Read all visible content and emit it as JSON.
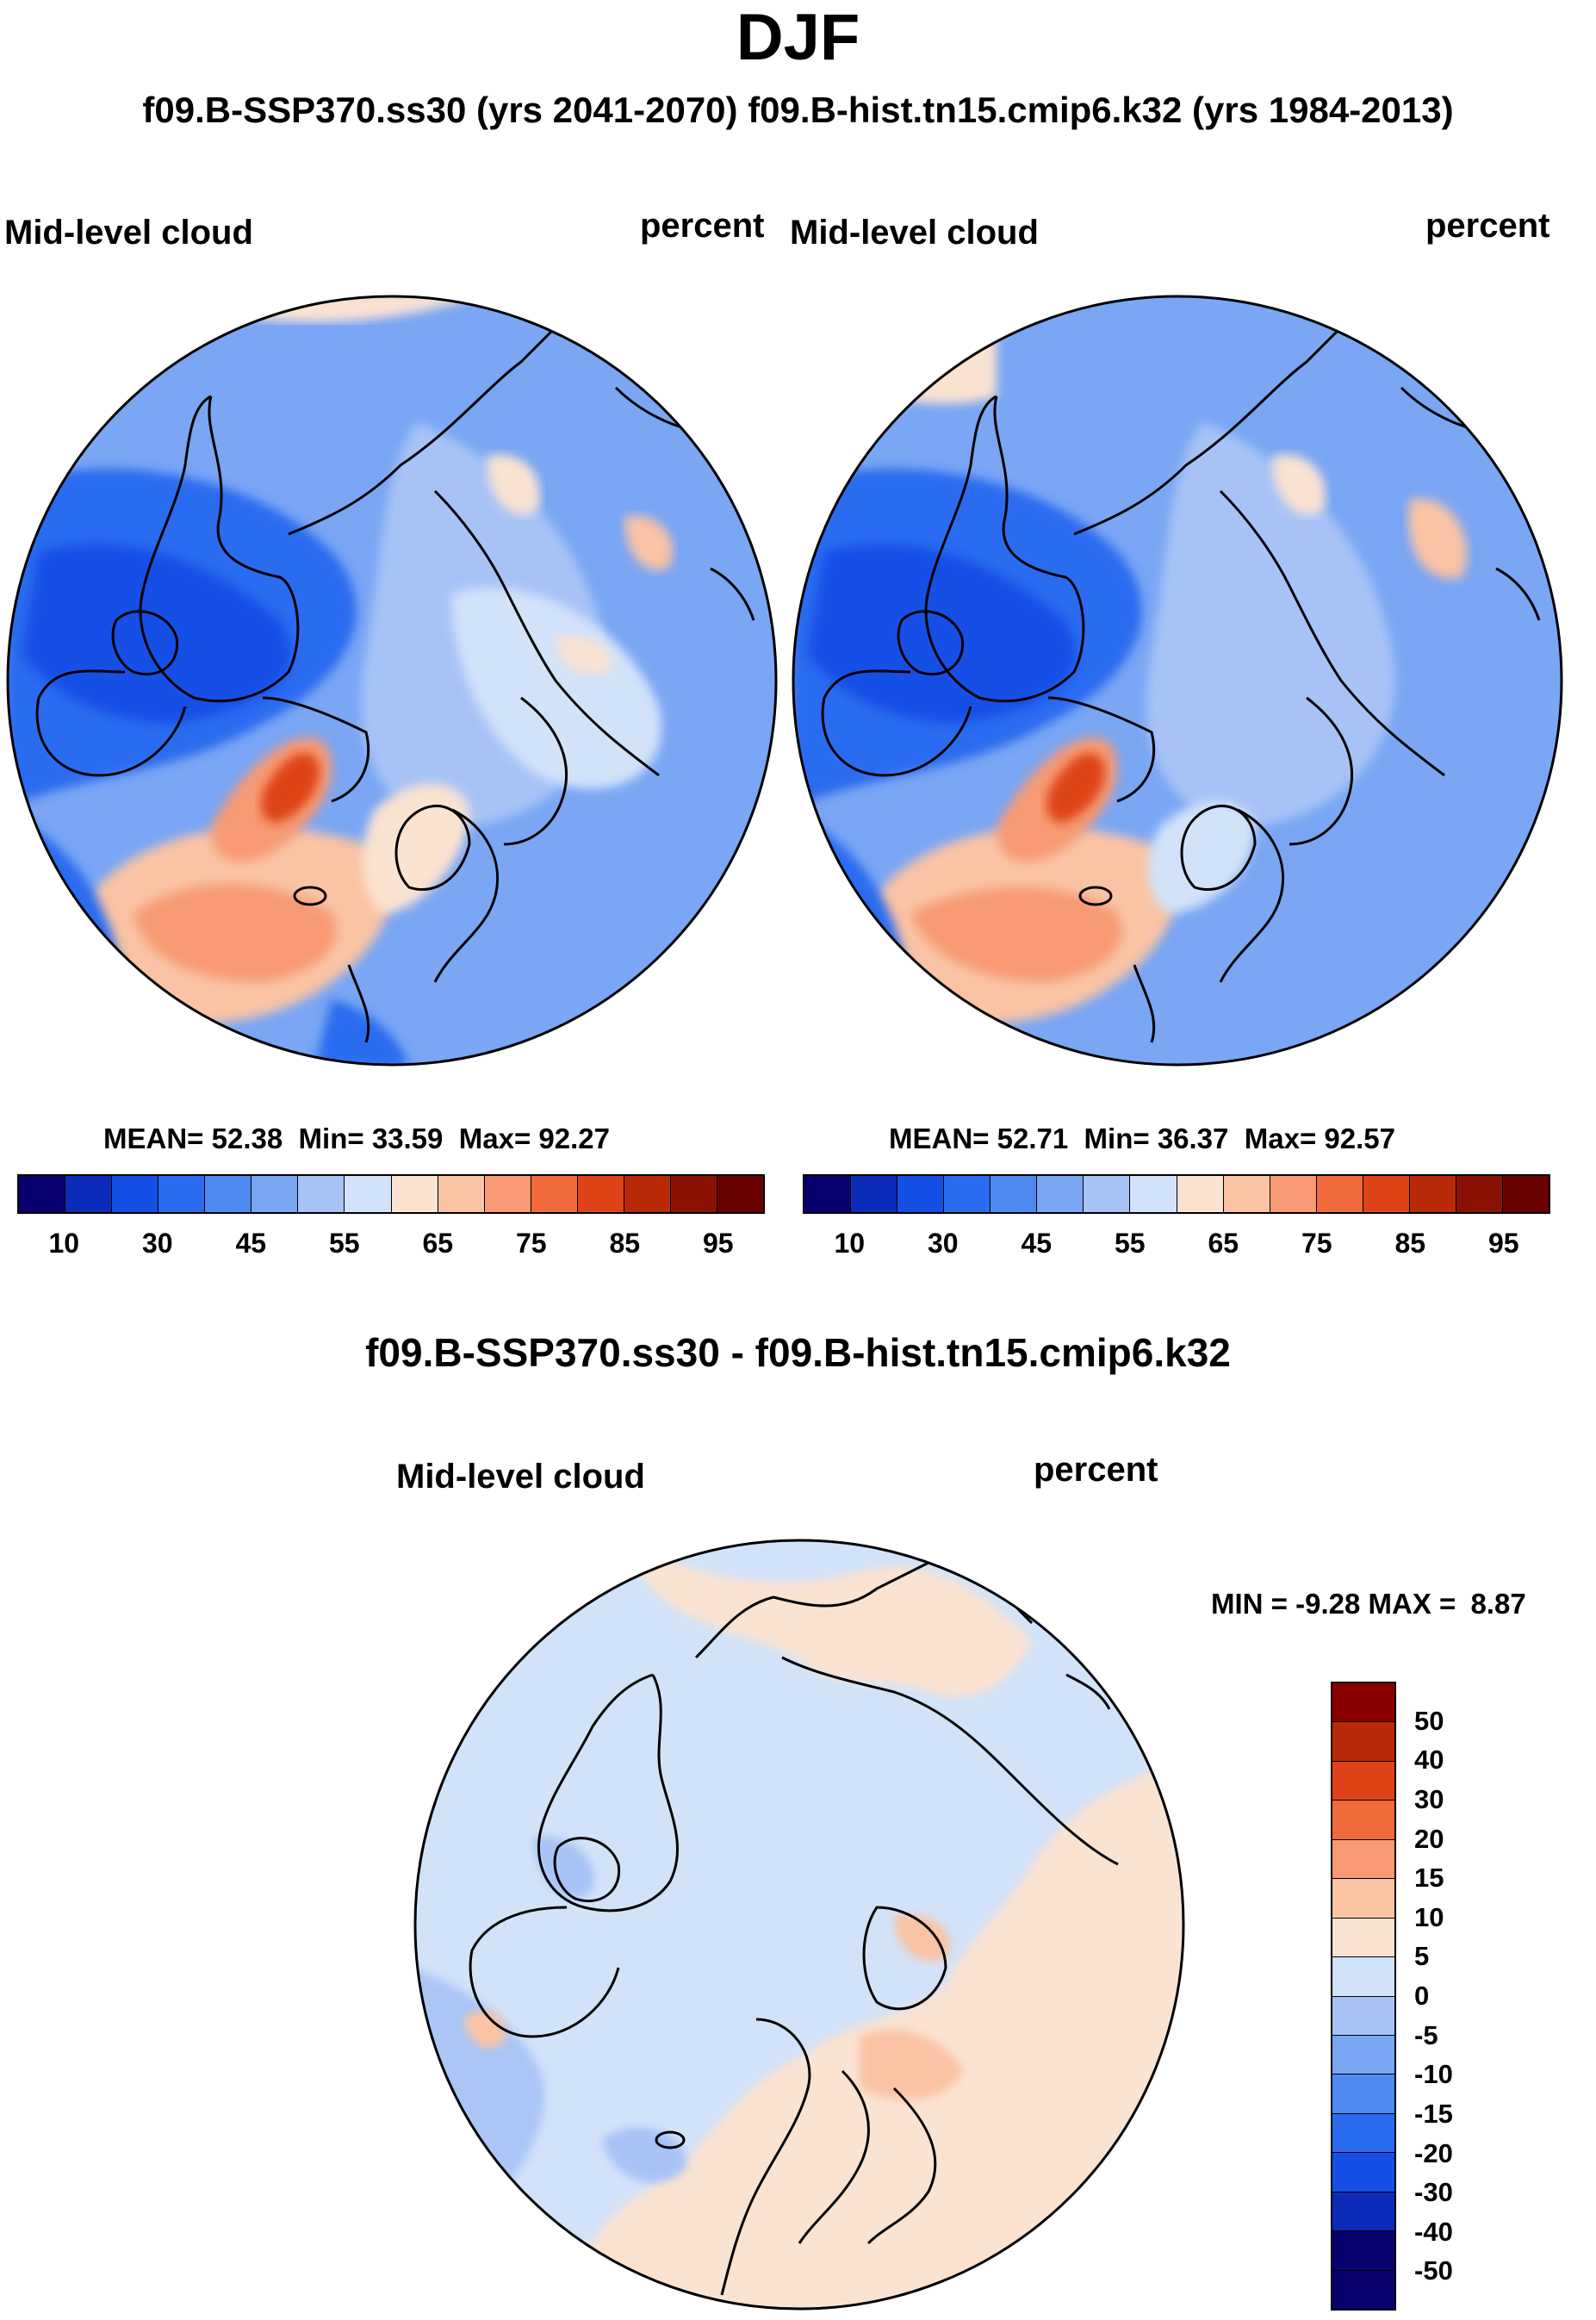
{
  "title": "DJF",
  "subtitle": "f09.B-SSP370.ss30 (yrs 2041-2070)  f09.B-hist.tn15.cmip6.k32 (yrs 1984-2013)",
  "diff_title": "f09.B-SSP370.ss30 - f09.B-hist.tn15.cmip6.k32",
  "chart_data": [
    {
      "type": "heatmap",
      "projection": "north-polar-stereographic",
      "variable": "Mid-level cloud",
      "units": "percent",
      "case": "f09.B-SSP370.ss30 (yrs 2041-2070)",
      "stats": {
        "mean_label": "MEAN=",
        "mean": "52.38",
        "min_label": "Min=",
        "min": "33.59",
        "max_label": "Max=",
        "max": "92.27"
      },
      "colorbar": {
        "levels": [
          10,
          20,
          30,
          40,
          45,
          50,
          55,
          60,
          65,
          70,
          75,
          80,
          85,
          90,
          95
        ],
        "tick_labels": [
          "10",
          "30",
          "45",
          "55",
          "65",
          "75",
          "85",
          "95"
        ],
        "colors": [
          "#08006e",
          "#0b2bb8",
          "#1450e6",
          "#2a6cf0",
          "#4f8af2",
          "#7aa6f4",
          "#a7c3f6",
          "#d2e3f9",
          "#fbe3d2",
          "#f9c3a4",
          "#f79a73",
          "#f06a3c",
          "#de4417",
          "#b82a08",
          "#8a1204",
          "#6a0202"
        ]
      }
    },
    {
      "type": "heatmap",
      "projection": "north-polar-stereographic",
      "variable": "Mid-level cloud",
      "units": "percent",
      "case": "f09.B-hist.tn15.cmip6.k32 (yrs 1984-2013)",
      "stats": {
        "mean_label": "MEAN=",
        "mean": "52.71",
        "min_label": "Min=",
        "min": "36.37",
        "max_label": "Max=",
        "max": "92.57"
      },
      "colorbar": {
        "levels": [
          10,
          20,
          30,
          40,
          45,
          50,
          55,
          60,
          65,
          70,
          75,
          80,
          85,
          90,
          95
        ],
        "tick_labels": [
          "10",
          "30",
          "45",
          "55",
          "65",
          "75",
          "85",
          "95"
        ],
        "colors": [
          "#08006e",
          "#0b2bb8",
          "#1450e6",
          "#2a6cf0",
          "#4f8af2",
          "#7aa6f4",
          "#a7c3f6",
          "#d2e3f9",
          "#fbe3d2",
          "#f9c3a4",
          "#f79a73",
          "#f06a3c",
          "#de4417",
          "#b82a08",
          "#8a1204",
          "#6a0202"
        ]
      }
    },
    {
      "type": "heatmap",
      "projection": "north-polar-stereographic",
      "variable": "Mid-level cloud",
      "units": "percent",
      "case": "f09.B-SSP370.ss30 - f09.B-hist.tn15.cmip6.k32",
      "stats": {
        "min_label": "MIN =",
        "min": "-9.28",
        "max_label": "MAX =",
        "max": "8.87"
      },
      "colorbar": {
        "levels": [
          -50,
          -40,
          -30,
          -20,
          -15,
          -10,
          -5,
          0,
          5,
          10,
          15,
          20,
          30,
          40,
          50
        ],
        "tick_labels": [
          "50",
          "40",
          "30",
          "20",
          "15",
          "10",
          "5",
          "0",
          "-5",
          "-10",
          "-15",
          "-20",
          "-30",
          "-40",
          "-50"
        ],
        "colors_top_to_bottom": [
          "#8a0000",
          "#b82a08",
          "#de4417",
          "#f06a3c",
          "#f79a73",
          "#f9c3a4",
          "#fbe3d2",
          "#d2e3f9",
          "#a7c3f6",
          "#7aa6f4",
          "#4f8af2",
          "#2a6cf0",
          "#1450e6",
          "#0b2bb8",
          "#08006e",
          "#08006e"
        ]
      }
    }
  ]
}
